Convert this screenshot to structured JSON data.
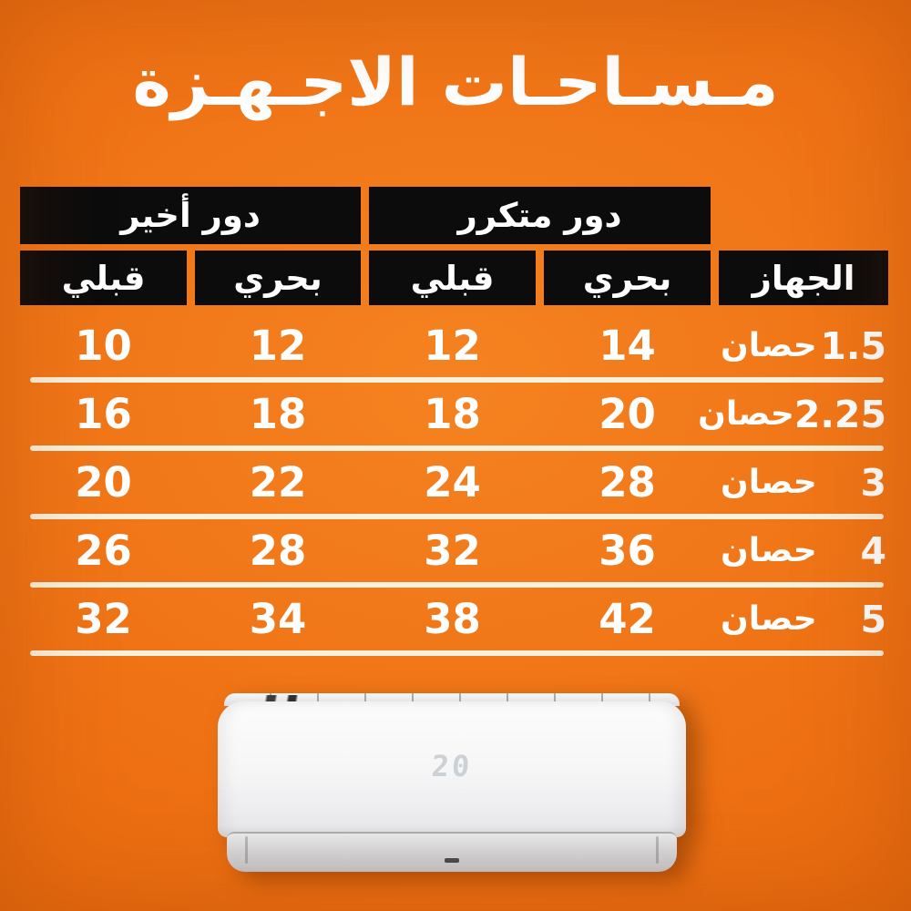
{
  "title": "مـسـاحـات الاجـهـزة",
  "colors": {
    "background_orange": "#ee7013",
    "header_black": "#0c0c0c",
    "separator_cream": "#f8f1dd",
    "text_white": "#ffffff"
  },
  "table": {
    "group_headers": [
      {
        "label": "دور أخير"
      },
      {
        "label": "دور متكرر"
      }
    ],
    "sub_headers": [
      "قبلي",
      "بحري",
      "قبلي",
      "بحري",
      "الجهاز"
    ],
    "rows": [
      {
        "values": [
          "10",
          "12",
          "12",
          "14"
        ],
        "hp": "1.5",
        "unit": "حصان"
      },
      {
        "values": [
          "16",
          "18",
          "18",
          "20"
        ],
        "hp": "2.25",
        "unit": "حصان"
      },
      {
        "values": [
          "20",
          "22",
          "24",
          "28"
        ],
        "hp": "3",
        "unit": "حصان"
      },
      {
        "values": [
          "26",
          "28",
          "32",
          "36"
        ],
        "hp": "4",
        "unit": "حصان"
      },
      {
        "values": [
          "32",
          "34",
          "38",
          "42"
        ],
        "hp": "5",
        "unit": "حصان"
      }
    ]
  },
  "ac_unit": {
    "display": "20"
  },
  "chart_data": {
    "type": "table",
    "title": "مساحات الاجهزة",
    "columns_rtl": [
      "الجهاز",
      "دور متكرر - بحري",
      "دور متكرر - قبلي",
      "دور أخير - بحري",
      "دور أخير - قبلي"
    ],
    "rows": [
      {
        "device": "1.5 حصان",
        "repeated_bahari": 14,
        "repeated_qibli": 12,
        "last_bahari": 12,
        "last_qibli": 10
      },
      {
        "device": "2.25 حصان",
        "repeated_bahari": 20,
        "repeated_qibli": 18,
        "last_bahari": 18,
        "last_qibli": 16
      },
      {
        "device": "3 حصان",
        "repeated_bahari": 28,
        "repeated_qibli": 24,
        "last_bahari": 22,
        "last_qibli": 20
      },
      {
        "device": "4 حصان",
        "repeated_bahari": 36,
        "repeated_qibli": 32,
        "last_bahari": 28,
        "last_qibli": 26
      },
      {
        "device": "5 حصان",
        "repeated_bahari": 42,
        "repeated_qibli": 38,
        "last_bahari": 34,
        "last_qibli": 32
      }
    ]
  }
}
